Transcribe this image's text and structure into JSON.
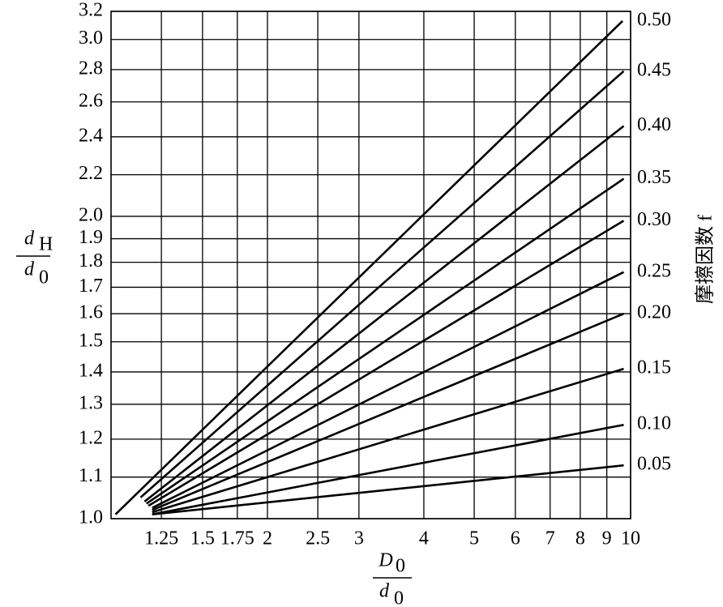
{
  "chart_data": {
    "type": "line",
    "xlabel": {
      "text": "D",
      "sub": "0",
      "den_text": "d",
      "den_sub": "0"
    },
    "ylabel": {
      "text": "d",
      "sub": "H",
      "den_text": "d",
      "den_sub": "0"
    },
    "y2label": "摩擦因数 f",
    "log_x": true,
    "log_y": true,
    "grid": true,
    "color": "#000000",
    "xlim": [
      1,
      10
    ],
    "xticks": [
      1.25,
      1.5,
      1.75,
      2,
      2.5,
      3,
      4,
      5,
      6,
      7,
      8,
      9,
      10
    ],
    "ylim": [
      1,
      3.2
    ],
    "yticks": [
      {
        "value": 1,
        "label": "1.0"
      },
      1.1,
      1.2,
      1.3,
      1.4,
      1.5,
      1.6,
      1.7,
      1.8,
      1.9,
      {
        "value": 2,
        "label": "2.0"
      },
      2.2,
      2.4,
      2.6,
      2.8,
      {
        "value": 3,
        "label": "3.0"
      },
      3.2
    ],
    "series": [
      {
        "name": "0.50",
        "x": [
          1.02,
          9.65
        ],
        "values": [
          1.01,
          3.13
        ]
      },
      {
        "name": "0.45",
        "x": [
          1.14,
          9.7
        ],
        "values": [
          1.05,
          2.79
        ]
      },
      {
        "name": "0.40",
        "x": [
          1.16,
          9.7
        ],
        "values": [
          1.04,
          2.46
        ]
      },
      {
        "name": "0.35",
        "x": [
          1.17,
          9.7
        ],
        "values": [
          1.035,
          2.18
        ]
      },
      {
        "name": "0.30",
        "x": [
          1.18,
          9.7
        ],
        "values": [
          1.03,
          1.98
        ]
      },
      {
        "name": "0.25",
        "x": [
          1.2,
          9.7
        ],
        "values": [
          1.025,
          1.76
        ]
      },
      {
        "name": "0.20",
        "x": [
          1.2,
          9.7
        ],
        "values": [
          1.02,
          1.6
        ]
      },
      {
        "name": "0.15",
        "x": [
          1.2,
          9.7
        ],
        "values": [
          1.015,
          1.41
        ]
      },
      {
        "name": "0.10",
        "x": [
          1.2,
          9.7
        ],
        "values": [
          1.01,
          1.24
        ]
      },
      {
        "name": "0.05",
        "x": [
          1.2,
          9.7
        ],
        "values": [
          1.01,
          1.13
        ]
      }
    ]
  }
}
